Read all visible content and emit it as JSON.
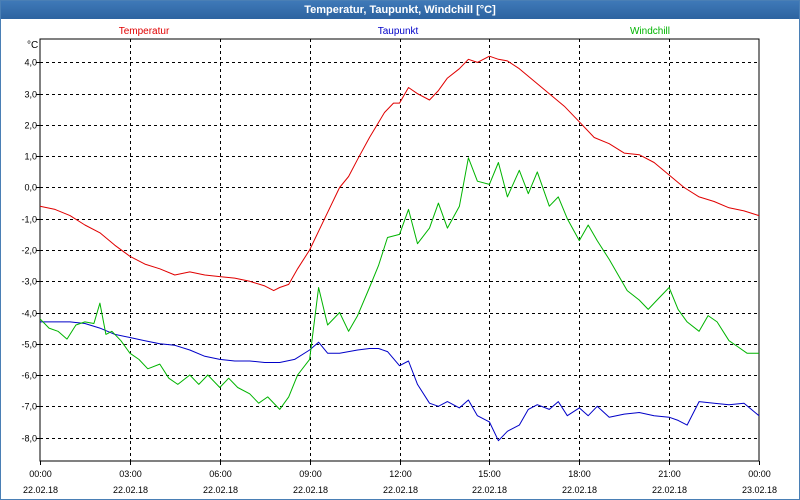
{
  "window": {
    "title": "Temperatur, Taupunkt, Windchill [°C]"
  },
  "chart_data": {
    "type": "line",
    "title": "Temperatur, Taupunkt, Windchill [°C]",
    "ylabel": "°C",
    "xlabel": "",
    "ylim": [
      -8.75,
      4.75
    ],
    "xlim": [
      0,
      24
    ],
    "grid": true,
    "legend_placement": "top",
    "y_ticks": [
      {
        "v": 4,
        "label": "4,0"
      },
      {
        "v": 3,
        "label": "3,0"
      },
      {
        "v": 2,
        "label": "2,0"
      },
      {
        "v": 1,
        "label": "1,0"
      },
      {
        "v": 0,
        "label": "0,0"
      },
      {
        "v": -1,
        "label": "-1,0"
      },
      {
        "v": -2,
        "label": "-2,0"
      },
      {
        "v": -3,
        "label": "-3,0"
      },
      {
        "v": -4,
        "label": "-4,0"
      },
      {
        "v": -5,
        "label": "-5,0"
      },
      {
        "v": -6,
        "label": "-6,0"
      },
      {
        "v": -7,
        "label": "-7,0"
      },
      {
        "v": -8,
        "label": "-8,0"
      }
    ],
    "x_ticks": [
      {
        "v": 0,
        "time": "00:00",
        "date": "22.02.18"
      },
      {
        "v": 3,
        "time": "03:00",
        "date": "22.02.18"
      },
      {
        "v": 6,
        "time": "06:00",
        "date": "22.02.18"
      },
      {
        "v": 9,
        "time": "09:00",
        "date": "22.02.18"
      },
      {
        "v": 12,
        "time": "12:00",
        "date": "22.02.18"
      },
      {
        "v": 15,
        "time": "15:00",
        "date": "22.02.18"
      },
      {
        "v": 18,
        "time": "18:00",
        "date": "22.02.18"
      },
      {
        "v": 21,
        "time": "21:00",
        "date": "22.02.18"
      },
      {
        "v": 24,
        "time": "00:00",
        "date": "23.02.18"
      }
    ],
    "series": [
      {
        "name": "Temperatur",
        "color": "#e00000",
        "x": [
          0,
          0.5,
          1,
          1.5,
          2,
          2.5,
          3,
          3.5,
          4,
          4.5,
          5,
          5.5,
          6,
          6.5,
          7,
          7.5,
          7.8,
          8,
          8.3,
          8.6,
          9,
          9.5,
          10,
          10.3,
          10.6,
          11,
          11.5,
          11.8,
          12,
          12.3,
          12.6,
          13,
          13.3,
          13.6,
          14,
          14.3,
          14.6,
          15,
          15.3,
          15.6,
          16,
          16.5,
          17,
          17.5,
          18,
          18.5,
          19,
          19.5,
          20,
          20.5,
          21,
          21.5,
          22,
          22.5,
          23,
          23.5,
          24
        ],
        "y": [
          -0.6,
          -0.7,
          -0.9,
          -1.2,
          -1.45,
          -1.85,
          -2.2,
          -2.45,
          -2.6,
          -2.8,
          -2.7,
          -2.8,
          -2.85,
          -2.9,
          -3.0,
          -3.15,
          -3.3,
          -3.2,
          -3.1,
          -2.6,
          -2.0,
          -1.0,
          0.0,
          0.35,
          0.9,
          1.6,
          2.4,
          2.7,
          2.7,
          3.2,
          3.0,
          2.8,
          3.1,
          3.5,
          3.8,
          4.1,
          4.0,
          4.2,
          4.1,
          4.05,
          3.8,
          3.4,
          3.0,
          2.6,
          2.1,
          1.6,
          1.4,
          1.1,
          1.05,
          0.8,
          0.4,
          0.0,
          -0.3,
          -0.45,
          -0.65,
          -0.75,
          -0.9
        ]
      },
      {
        "name": "Taupunkt",
        "color": "#0000c8",
        "x": [
          0,
          0.5,
          1,
          1.5,
          2,
          2.5,
          3,
          3.5,
          4,
          4.5,
          5,
          5.5,
          6,
          6.5,
          7,
          7.5,
          8,
          8.5,
          9,
          9.3,
          9.6,
          10,
          10.3,
          10.6,
          11,
          11.3,
          11.6,
          12,
          12.3,
          12.6,
          13,
          13.3,
          13.6,
          14,
          14.3,
          14.6,
          15,
          15.3,
          15.6,
          16,
          16.3,
          16.6,
          17,
          17.3,
          17.6,
          18,
          18.3,
          18.6,
          19,
          19.5,
          20,
          20.5,
          21,
          21.3,
          21.6,
          22,
          22.5,
          23,
          23.5,
          24
        ],
        "y": [
          -4.3,
          -4.3,
          -4.3,
          -4.35,
          -4.5,
          -4.7,
          -4.8,
          -4.9,
          -5.0,
          -5.05,
          -5.2,
          -5.4,
          -5.5,
          -5.55,
          -5.55,
          -5.6,
          -5.6,
          -5.5,
          -5.2,
          -4.95,
          -5.3,
          -5.3,
          -5.25,
          -5.2,
          -5.15,
          -5.15,
          -5.25,
          -5.7,
          -5.55,
          -6.3,
          -6.9,
          -7.0,
          -6.85,
          -7.05,
          -6.8,
          -7.3,
          -7.5,
          -8.1,
          -7.8,
          -7.6,
          -7.1,
          -6.95,
          -7.1,
          -6.85,
          -7.3,
          -7.05,
          -7.3,
          -7.0,
          -7.35,
          -7.25,
          -7.2,
          -7.3,
          -7.35,
          -7.45,
          -7.6,
          -6.85,
          -6.9,
          -6.95,
          -6.9,
          -7.3
        ]
      },
      {
        "name": "Windchill",
        "color": "#00b400",
        "x": [
          0,
          0.3,
          0.6,
          0.9,
          1.2,
          1.5,
          1.8,
          2.0,
          2.2,
          2.4,
          2.7,
          3.0,
          3.3,
          3.6,
          4.0,
          4.3,
          4.6,
          5.0,
          5.3,
          5.6,
          6.0,
          6.3,
          6.6,
          7.0,
          7.3,
          7.6,
          8.0,
          8.3,
          8.6,
          9.0,
          9.3,
          9.6,
          10.0,
          10.3,
          10.6,
          11.0,
          11.3,
          11.6,
          12.0,
          12.3,
          12.6,
          13.0,
          13.3,
          13.6,
          14.0,
          14.3,
          14.6,
          15.0,
          15.3,
          15.6,
          16.0,
          16.3,
          16.6,
          17.0,
          17.3,
          17.6,
          18.0,
          18.3,
          18.6,
          19.0,
          19.3,
          19.6,
          20.0,
          20.3,
          20.6,
          21.0,
          21.3,
          21.6,
          22.0,
          22.3,
          22.6,
          23.0,
          23.3,
          23.6,
          24.0
        ],
        "y": [
          -4.2,
          -4.5,
          -4.6,
          -4.85,
          -4.4,
          -4.3,
          -4.35,
          -3.7,
          -4.7,
          -4.6,
          -4.9,
          -5.3,
          -5.5,
          -5.8,
          -5.65,
          -6.1,
          -6.3,
          -6.0,
          -6.3,
          -6.0,
          -6.4,
          -6.1,
          -6.4,
          -6.6,
          -6.9,
          -6.7,
          -7.1,
          -6.7,
          -6.0,
          -5.5,
          -3.2,
          -4.4,
          -4.0,
          -4.6,
          -4.1,
          -3.2,
          -2.5,
          -1.6,
          -1.5,
          -0.7,
          -1.8,
          -1.3,
          -0.5,
          -1.3,
          -0.6,
          0.95,
          0.2,
          0.1,
          0.8,
          -0.3,
          0.55,
          -0.2,
          0.5,
          -0.6,
          -0.3,
          -1.0,
          -1.7,
          -1.2,
          -1.7,
          -2.3,
          -2.8,
          -3.3,
          -3.6,
          -3.9,
          -3.6,
          -3.2,
          -3.9,
          -4.3,
          -4.6,
          -4.1,
          -4.3,
          -4.9,
          -5.1,
          -5.3,
          -5.3
        ]
      }
    ]
  }
}
